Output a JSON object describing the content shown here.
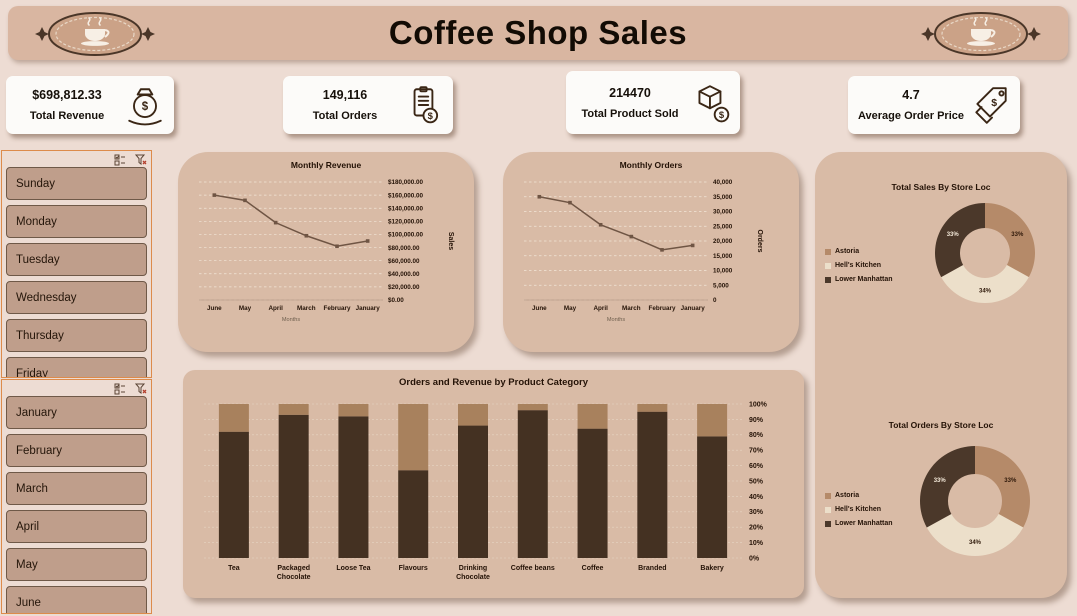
{
  "header": {
    "title": "Coffee Shop Sales"
  },
  "kpis": [
    {
      "value": "$698,812.33",
      "label": "Total Revenue",
      "icon": "money-bag-icon"
    },
    {
      "value": "149,116",
      "label": "Total Orders",
      "icon": "order-list-icon"
    },
    {
      "value": "214470",
      "label": "Total Product Sold",
      "icon": "product-box-icon"
    },
    {
      "value": "4.7",
      "label": "Average Order Price",
      "icon": "price-tag-icon"
    }
  ],
  "slicers": {
    "days": {
      "items": [
        "Sunday",
        "Monday",
        "Tuesday",
        "Wednesday",
        "Thursday",
        "Friday"
      ]
    },
    "months": {
      "items": [
        "January",
        "February",
        "March",
        "April",
        "May",
        "June"
      ]
    }
  },
  "theme": {
    "background": "#eddcd3",
    "header_band": "#d9b6a1",
    "panel": "#d9bba6",
    "card": "#fcfbf9",
    "slicer_item": "#bf9e8b",
    "slicer_border": "#dd8b4b",
    "dark_brown": "#443122",
    "tan": "#a8815d",
    "cream": "#ecdfca",
    "line": "#6f5544"
  },
  "chart_data": [
    {
      "type": "line",
      "title": "Monthly Revenue",
      "x": [
        "June",
        "May",
        "April",
        "March",
        "February",
        "January"
      ],
      "values": [
        160000,
        152000,
        118000,
        98000,
        82000,
        90000
      ],
      "xlabel": "Months",
      "ylabel": "Sales",
      "ylim": [
        0,
        180000
      ],
      "ytick_step": 20000,
      "ytick_format": "currency2",
      "line_color": "#6f5544",
      "grid": true,
      "legend": "none"
    },
    {
      "type": "line",
      "title": "Monthly Orders",
      "x": [
        "June",
        "May",
        "April",
        "March",
        "February",
        "January"
      ],
      "values": [
        35000,
        33000,
        25500,
        21500,
        17000,
        18500
      ],
      "xlabel": "Months",
      "ylabel": "Orders",
      "ylim": [
        0,
        40000
      ],
      "ytick_step": 5000,
      "ytick_format": "thousands",
      "line_color": "#6f5544",
      "grid": true,
      "legend": "none"
    },
    {
      "type": "stacked-bar-100",
      "title": "Orders and Revenue by Product Category",
      "categories": [
        "Tea",
        "Packaged Chocolate",
        "Loose Tea",
        "Flavours",
        "Drinking Chocolate",
        "Coffee beans",
        "Coffee",
        "Branded",
        "Bakery"
      ],
      "series": [
        {
          "name": "Orders",
          "color": "#443122",
          "values": [
            82,
            93,
            92,
            57,
            86,
            96,
            84,
            95,
            79
          ]
        },
        {
          "name": "Revenue",
          "color": "#a8815d",
          "values": [
            18,
            7,
            8,
            43,
            14,
            4,
            16,
            5,
            21
          ]
        }
      ],
      "ylim": [
        0,
        100
      ],
      "ytick_step": 10,
      "ytick_format": "percent",
      "grid": true,
      "legend": "none"
    },
    {
      "type": "donut",
      "title": "Total Sales By Store Loc",
      "legend_position": "left",
      "slices": [
        {
          "label": "Astoria",
          "value": 33,
          "color": "#b58a69",
          "text": "33%",
          "text_color": "#2d1708"
        },
        {
          "label": "Hell's Kitchen",
          "value": 34,
          "color": "#ecdfca",
          "text": "34%",
          "text_color": "#2d1708"
        },
        {
          "label": "Lower Manhattan",
          "value": 33,
          "color": "#4b382a",
          "text": "33%",
          "text_color": "#f3e8d8"
        }
      ]
    },
    {
      "type": "donut",
      "title": "Total Orders By Store Loc",
      "legend_position": "left",
      "slices": [
        {
          "label": "Astoria",
          "value": 33,
          "color": "#b58a69",
          "text": "33%",
          "text_color": "#2d1708"
        },
        {
          "label": "Hell's Kitchen",
          "value": 34,
          "color": "#ecdfca",
          "text": "34%",
          "text_color": "#2d1708"
        },
        {
          "label": "Lower Manhattan",
          "value": 33,
          "color": "#4b382a",
          "text": "33%",
          "text_color": "#f3e8d8"
        }
      ]
    }
  ]
}
